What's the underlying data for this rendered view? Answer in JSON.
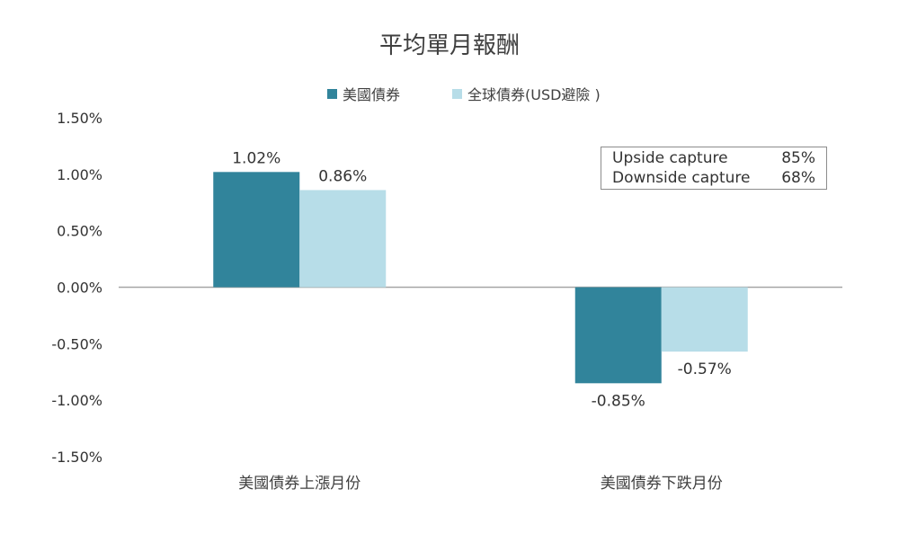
{
  "chart_data": {
    "type": "bar",
    "title": "平均單月報酬",
    "categories": [
      "美國債券上漲月份",
      "美國債券下跌月份"
    ],
    "series": [
      {
        "name": "美國債券",
        "values": [
          1.02,
          -0.85
        ],
        "labels": [
          "1.02%",
          "-0.85%"
        ],
        "color": "#31849b"
      },
      {
        "name": "全球債券(USD避險 )",
        "values": [
          0.86,
          -0.57
        ],
        "labels": [
          "0.86%",
          "-0.57%"
        ],
        "color": "#b7dde8"
      }
    ],
    "ylim": [
      -1.5,
      1.5
    ],
    "yticks": [
      1.5,
      1.0,
      0.5,
      0.0,
      -0.5,
      -1.0,
      -1.5
    ],
    "ytick_labels": [
      "1.50%",
      "1.00%",
      "0.50%",
      "0.00%",
      "-0.50%",
      "-1.00%",
      "-1.50%"
    ],
    "xlabel": "",
    "ylabel": "",
    "legend_position": "top"
  },
  "capture": {
    "rows": [
      {
        "label": "Upside capture",
        "value": "85%"
      },
      {
        "label": "Downside capture",
        "value": "68%"
      }
    ]
  }
}
